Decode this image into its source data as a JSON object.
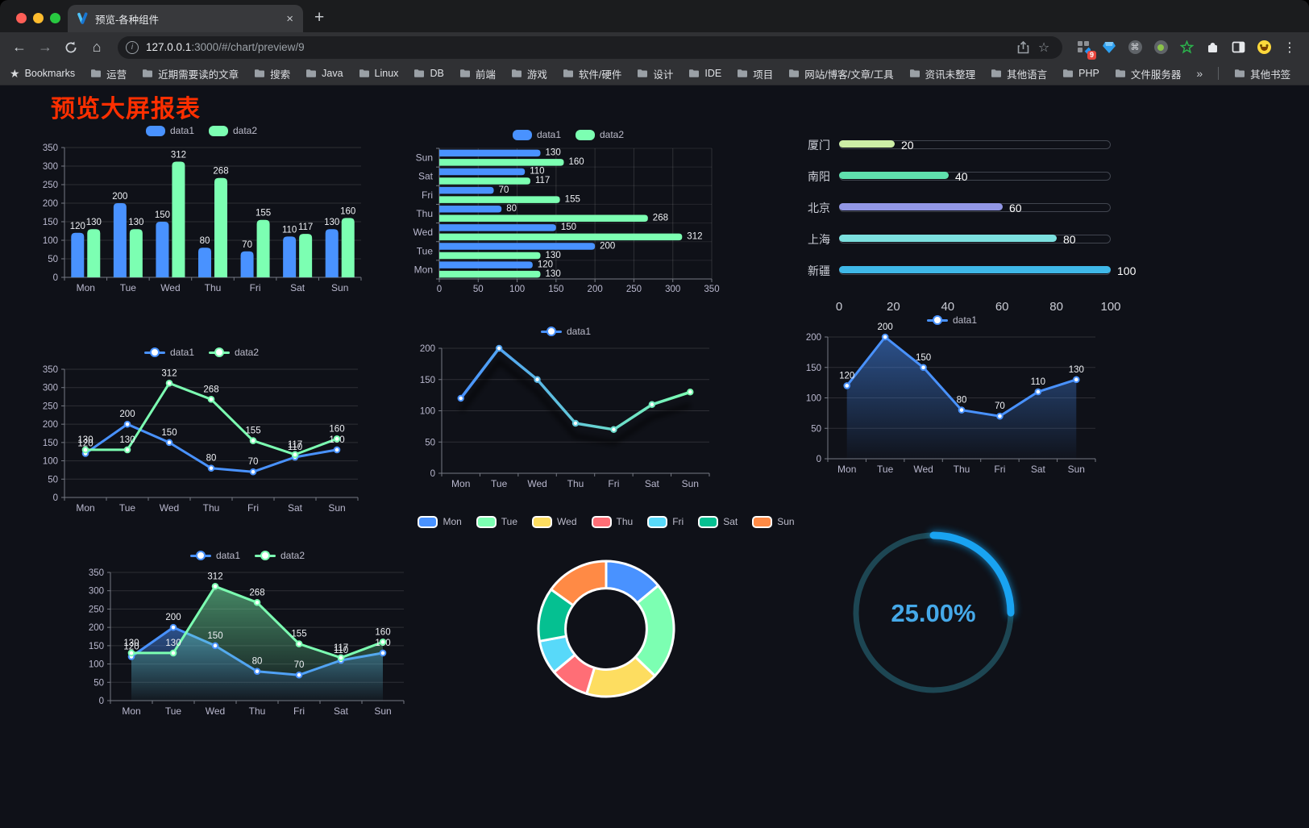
{
  "browser": {
    "tab": {
      "title": "预览-各种组件"
    },
    "address": {
      "host": "127.0.0.1",
      "path": ":3000/#/chart/preview/9"
    },
    "extensions_badge": "9",
    "bookmarks": {
      "root_label": "Bookmarks",
      "folders": [
        "运营",
        "近期需要读的文章",
        "搜索",
        "Java",
        "Linux",
        "DB",
        "前端",
        "游戏",
        "软件/硬件",
        "设计",
        "IDE",
        "项目",
        "网站/博客/文章/工具",
        "资讯未整理",
        "其他语言",
        "PHP",
        "文件服务器"
      ],
      "overflow": "»",
      "other": "其他书签"
    },
    "icons": {
      "back": "←",
      "forward": "→",
      "home": "⌂",
      "star": "☆",
      "cmd": "⌘",
      "kebab": "⋮",
      "close_tab": "×",
      "new_tab": "+",
      "info": "i"
    }
  },
  "page": {
    "title": "预览大屏报表",
    "title_color": "#ff2f00",
    "background": "#0f1118"
  },
  "palette": {
    "blue": "#4992ff",
    "green": "#7cffb2",
    "yellow": "#fddd60",
    "red": "#ff6e76",
    "cyan": "#58d9f9",
    "teal": "#05c091",
    "orange": "#ff8a45"
  },
  "chart_data": [
    {
      "id": "grouped-bar",
      "type": "bar",
      "categories": [
        "Mon",
        "Tue",
        "Wed",
        "Thu",
        "Fri",
        "Sat",
        "Sun"
      ],
      "series": [
        {
          "name": "data1",
          "color": "#4992ff",
          "values": [
            120,
            200,
            150,
            80,
            70,
            110,
            130
          ]
        },
        {
          "name": "data2",
          "color": "#7cffb2",
          "values": [
            130,
            130,
            312,
            268,
            155,
            117,
            160
          ]
        }
      ],
      "ylim": [
        0,
        350
      ],
      "ystep": 50,
      "legend_position": "top",
      "grid": true
    },
    {
      "id": "horizontal-bar",
      "type": "bar-horizontal",
      "categories": [
        "Mon",
        "Tue",
        "Wed",
        "Thu",
        "Fri",
        "Sat",
        "Sun"
      ],
      "series": [
        {
          "name": "data1",
          "color": "#4992ff",
          "values": [
            120,
            200,
            150,
            80,
            70,
            110,
            130
          ]
        },
        {
          "name": "data2",
          "color": "#7cffb2",
          "values": [
            130,
            130,
            312,
            268,
            155,
            117,
            160
          ]
        }
      ],
      "xlim": [
        0,
        350
      ],
      "xstep": 50,
      "legend_position": "top",
      "grid": true
    },
    {
      "id": "city-progress",
      "type": "progress",
      "categories": [
        "厦门",
        "南阳",
        "北京",
        "上海",
        "新疆"
      ],
      "values": [
        20,
        40,
        60,
        80,
        100
      ],
      "colors": [
        "#cdeea6",
        "#5fe0ad",
        "#9297e6",
        "#7ce0df",
        "#3fb8e8"
      ],
      "xlim": [
        0,
        100
      ],
      "xstep": 20
    },
    {
      "id": "basic-line",
      "type": "line",
      "labels": true,
      "categories": [
        "Mon",
        "Tue",
        "Wed",
        "Thu",
        "Fri",
        "Sat",
        "Sun"
      ],
      "series": [
        {
          "name": "data1",
          "color": "#4992ff",
          "values": [
            120,
            200,
            150,
            80,
            70,
            110,
            130
          ],
          "area": false
        },
        {
          "name": "data2",
          "color": "#7cffb2",
          "values": [
            130,
            130,
            312,
            268,
            155,
            117,
            160
          ],
          "area": false
        }
      ],
      "ylim": [
        0,
        350
      ],
      "ystep": 50,
      "legend_position": "top",
      "grid": true
    },
    {
      "id": "gradient-line",
      "type": "line-gradient",
      "labels": false,
      "categories": [
        "Mon",
        "Tue",
        "Wed",
        "Thu",
        "Fri",
        "Sat",
        "Sun"
      ],
      "series": [
        {
          "name": "data1",
          "values": [
            120,
            200,
            150,
            80,
            70,
            110,
            130
          ]
        }
      ],
      "gradient": [
        "#4992ff",
        "#7cffb2"
      ],
      "shadow": true,
      "ylim": [
        0,
        200
      ],
      "ystep": 50,
      "legend_position": "top",
      "grid": true
    },
    {
      "id": "area-line",
      "type": "line",
      "labels": true,
      "categories": [
        "Mon",
        "Tue",
        "Wed",
        "Thu",
        "Fri",
        "Sat",
        "Sun"
      ],
      "series": [
        {
          "name": "data1",
          "color": "#4992ff",
          "values": [
            120,
            200,
            150,
            80,
            70,
            110,
            130
          ],
          "area": true
        }
      ],
      "ylim": [
        0,
        200
      ],
      "ystep": 50,
      "legend_position": "top",
      "grid": true
    },
    {
      "id": "double-area-line",
      "type": "line",
      "labels": true,
      "categories": [
        "Mon",
        "Tue",
        "Wed",
        "Thu",
        "Fri",
        "Sat",
        "Sun"
      ],
      "series": [
        {
          "name": "data1",
          "color": "#4992ff",
          "values": [
            120,
            200,
            150,
            80,
            70,
            110,
            130
          ],
          "area": true
        },
        {
          "name": "data2",
          "color": "#7cffb2",
          "values": [
            130,
            130,
            312,
            268,
            155,
            117,
            160
          ],
          "area": true
        }
      ],
      "ylim": [
        0,
        350
      ],
      "ystep": 50,
      "legend_position": "top",
      "grid": true
    },
    {
      "id": "donut",
      "type": "pie",
      "inner_radius_ratio": 0.6,
      "legend_position": "top",
      "categories": [
        "Mon",
        "Tue",
        "Wed",
        "Thu",
        "Fri",
        "Sat",
        "Sun"
      ],
      "values": [
        120,
        200,
        150,
        80,
        70,
        110,
        130
      ],
      "colors": [
        "#4992ff",
        "#7cffb2",
        "#fddd60",
        "#ff6e76",
        "#58d9f9",
        "#05c091",
        "#ff8a45"
      ]
    },
    {
      "id": "ring-gauge",
      "type": "gauge",
      "value": 25,
      "max": 100,
      "label": "25.00%",
      "color": "#19a3f1",
      "track_color": "#1d4653",
      "label_color": "#45a9e9"
    }
  ]
}
